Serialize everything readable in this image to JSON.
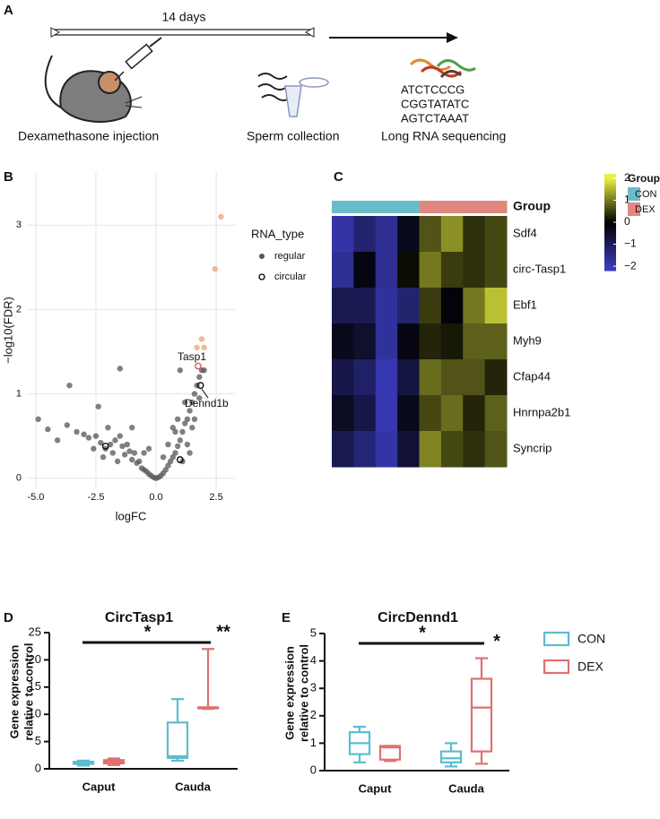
{
  "panel_labels": [
    "A",
    "B",
    "C",
    "D",
    "E"
  ],
  "schematic": {
    "duration": "14 days",
    "steps": [
      "Dexamethasone injection",
      "Sperm collection",
      "Long RNA sequencing"
    ],
    "sequences": [
      "ATCTCCCG",
      "CGGTATATC",
      "AGTCTAAAT"
    ]
  },
  "chart_data": [
    {
      "type": "volcano",
      "xlabel": "logFC",
      "ylabel": "−log10(FDR)",
      "xlim": [
        -5.37,
        3.28
      ],
      "ylim": [
        -0.12,
        3.63
      ],
      "xticks": [
        {
          "value": -5,
          "label": "-5.0"
        },
        -2.5,
        {
          "value": 0,
          "label": "0.0"
        },
        2.5
      ],
      "yticks": [
        0,
        1,
        2,
        3
      ],
      "grid": true,
      "legend_title": "RNA_type",
      "series": [
        {
          "name": "regular",
          "marker": "filled",
          "color": "#555555",
          "x": [
            -4.9,
            -4.5,
            -4.1,
            -3.7,
            -3.6,
            -3.3,
            -3.0,
            -2.8,
            -2.6,
            -2.5,
            -2.3,
            -2.2,
            -2.1,
            -2.0,
            -1.9,
            -1.8,
            -1.7,
            -1.6,
            -1.5,
            -1.5,
            -1.4,
            -1.3,
            -1.2,
            -1.1,
            -1.0,
            -0.9,
            -0.8,
            -0.7,
            -0.6,
            -0.5,
            -0.4,
            -0.3,
            -0.2,
            -0.1,
            0,
            0.1,
            0.2,
            0.3,
            0.4,
            0.5,
            0.6,
            0.7,
            0.8,
            0.9,
            1.0,
            1.1,
            1.2,
            1.3,
            1.3,
            1.4,
            1.5,
            1.5,
            1.6,
            1.7,
            1.8,
            1.9,
            2.0,
            1.0,
            1.2,
            0.8,
            -0.5,
            -1.0,
            -2.4,
            1.4,
            1.1,
            -0.3,
            0.3,
            0.5,
            0.7,
            0.9,
            1.6,
            1.8
          ],
          "values": [
            0.7,
            0.58,
            0.45,
            0.63,
            1.1,
            0.55,
            0.52,
            0.48,
            0.35,
            0.5,
            0.42,
            0.25,
            0.35,
            0.6,
            0.4,
            0.3,
            0.45,
            0.2,
            1.3,
            0.5,
            0.38,
            0.28,
            0.4,
            0.32,
            0.22,
            0.3,
            0.18,
            0.2,
            0.12,
            0.1,
            0.08,
            0.05,
            0.03,
            0.01,
            0,
            0.01,
            0.03,
            0.06,
            0.1,
            0.15,
            0.2,
            0.25,
            0.3,
            0.38,
            0.45,
            0.55,
            0.65,
            0.7,
            0.4,
            0.8,
            0.9,
            0.6,
            1.0,
            1.1,
            1.2,
            1.28,
            1.28,
            1.28,
            0.9,
            0.55,
            0.3,
            0.6,
            0.85,
            0.3,
            0.2,
            0.35,
            0.25,
            0.4,
            0.6,
            0.7,
            0.7,
            0.95
          ]
        },
        {
          "name": "circular",
          "marker": "open",
          "color": "#000000",
          "x": [
            -2.1,
            1.0,
            1.85
          ],
          "values": [
            0.38,
            0.22,
            1.1
          ]
        },
        {
          "marker": "filled",
          "color": "#f0a070",
          "x": [
            2.7,
            2.45,
            1.9,
            1.7,
            2.0
          ],
          "values": [
            3.1,
            2.48,
            1.65,
            1.55,
            1.55
          ]
        },
        {
          "marker": "open",
          "color": "#d9534f",
          "x": [
            1.75
          ],
          "values": [
            1.33
          ]
        }
      ],
      "annotations": [
        {
          "text": "Tasp1",
          "color": "#c0392b"
        },
        {
          "text": "Dennd1b",
          "color": "#000000"
        }
      ]
    },
    {
      "type": "heatmap",
      "annotation_label": "Group",
      "rows": [
        "Sdf4",
        "circ-Tasp1",
        "Ebf1",
        "Myh9",
        "Cfap44",
        "Hnrnpa2b1",
        "Syncrip"
      ],
      "column_groups": [
        "CON",
        "CON",
        "CON",
        "CON",
        "DEX",
        "DEX",
        "DEX",
        "DEX"
      ],
      "values": [
        [
          -1.8,
          -1.2,
          -1.6,
          -0.3,
          0.7,
          1.2,
          0.4,
          0.6
        ],
        [
          -1.6,
          -0.2,
          -1.6,
          0.1,
          1.0,
          0.5,
          0.4,
          0.6
        ],
        [
          -0.9,
          -0.9,
          -1.7,
          -1.2,
          0.5,
          -0.1,
          1.0,
          1.6
        ],
        [
          -0.3,
          -0.5,
          -1.7,
          -0.2,
          0.3,
          0.2,
          0.8,
          0.8
        ],
        [
          -0.8,
          -1.1,
          -1.9,
          -0.7,
          0.9,
          0.7,
          0.7,
          0.3
        ],
        [
          -0.4,
          -0.8,
          -1.9,
          -0.3,
          0.6,
          0.9,
          0.3,
          0.8
        ],
        [
          -0.9,
          -1.3,
          -1.8,
          -0.6,
          1.1,
          0.6,
          0.4,
          0.7
        ]
      ],
      "colorbar_lim": [
        -2.2,
        2.2
      ],
      "colorbar_ticks": [
        2,
        1,
        0,
        {
          "value": -1,
          "label": "−1"
        },
        {
          "value": -2,
          "label": "−2"
        }
      ],
      "colors": {
        "low": "#3a3ab8",
        "mid": "#000000",
        "high": "#e8f040"
      },
      "legend_title": "Group",
      "groups": [
        {
          "name": "CON",
          "color": "#6bbcc9"
        },
        {
          "name": "DEX",
          "color": "#e08880"
        }
      ]
    },
    {
      "type": "box",
      "title": "CircTasp1",
      "ylabel": [
        "Gene expression",
        "relative to control"
      ],
      "categories": [
        "Caput",
        "Cauda"
      ],
      "ylim": [
        0,
        25
      ],
      "yticks": [
        0,
        5,
        10,
        15,
        20,
        25
      ],
      "legend": false,
      "significance": {
        "overall": "*",
        "cauda": "**"
      },
      "series": [
        {
          "name": "CON",
          "color": "#5bbcd0",
          "values": [
            [
              0.6,
              0.9,
              1.1,
              1.3,
              1.5
            ],
            [
              1.5,
              2.0,
              2.3,
              8.5,
              12.8
            ]
          ]
        },
        {
          "name": "DEX",
          "color": "#e07070",
          "values": [
            [
              0.7,
              1.0,
              1.3,
              1.6,
              1.9
            ],
            [
              11.0,
              11.1,
              11.2,
              11.3,
              22.0
            ]
          ]
        }
      ]
    },
    {
      "type": "box",
      "title": "CircDennd1",
      "ylabel": [
        "Gene expression",
        "relative to control"
      ],
      "categories": [
        "Caput",
        "Cauda"
      ],
      "ylim": [
        0,
        5
      ],
      "yticks": [
        0,
        1,
        2,
        3,
        4,
        5
      ],
      "legend": true,
      "significance": {
        "overall": "*",
        "cauda": "*"
      },
      "series": [
        {
          "name": "CON",
          "color": "#5bbcd0",
          "values": [
            [
              0.3,
              0.6,
              1.0,
              1.4,
              1.6
            ],
            [
              0.15,
              0.3,
              0.45,
              0.7,
              1.0
            ]
          ]
        },
        {
          "name": "DEX",
          "color": "#e07070",
          "values": [
            [
              0.35,
              0.4,
              0.85,
              0.9,
              0.9
            ],
            [
              0.25,
              0.7,
              2.3,
              3.35,
              4.1
            ]
          ]
        }
      ]
    }
  ]
}
